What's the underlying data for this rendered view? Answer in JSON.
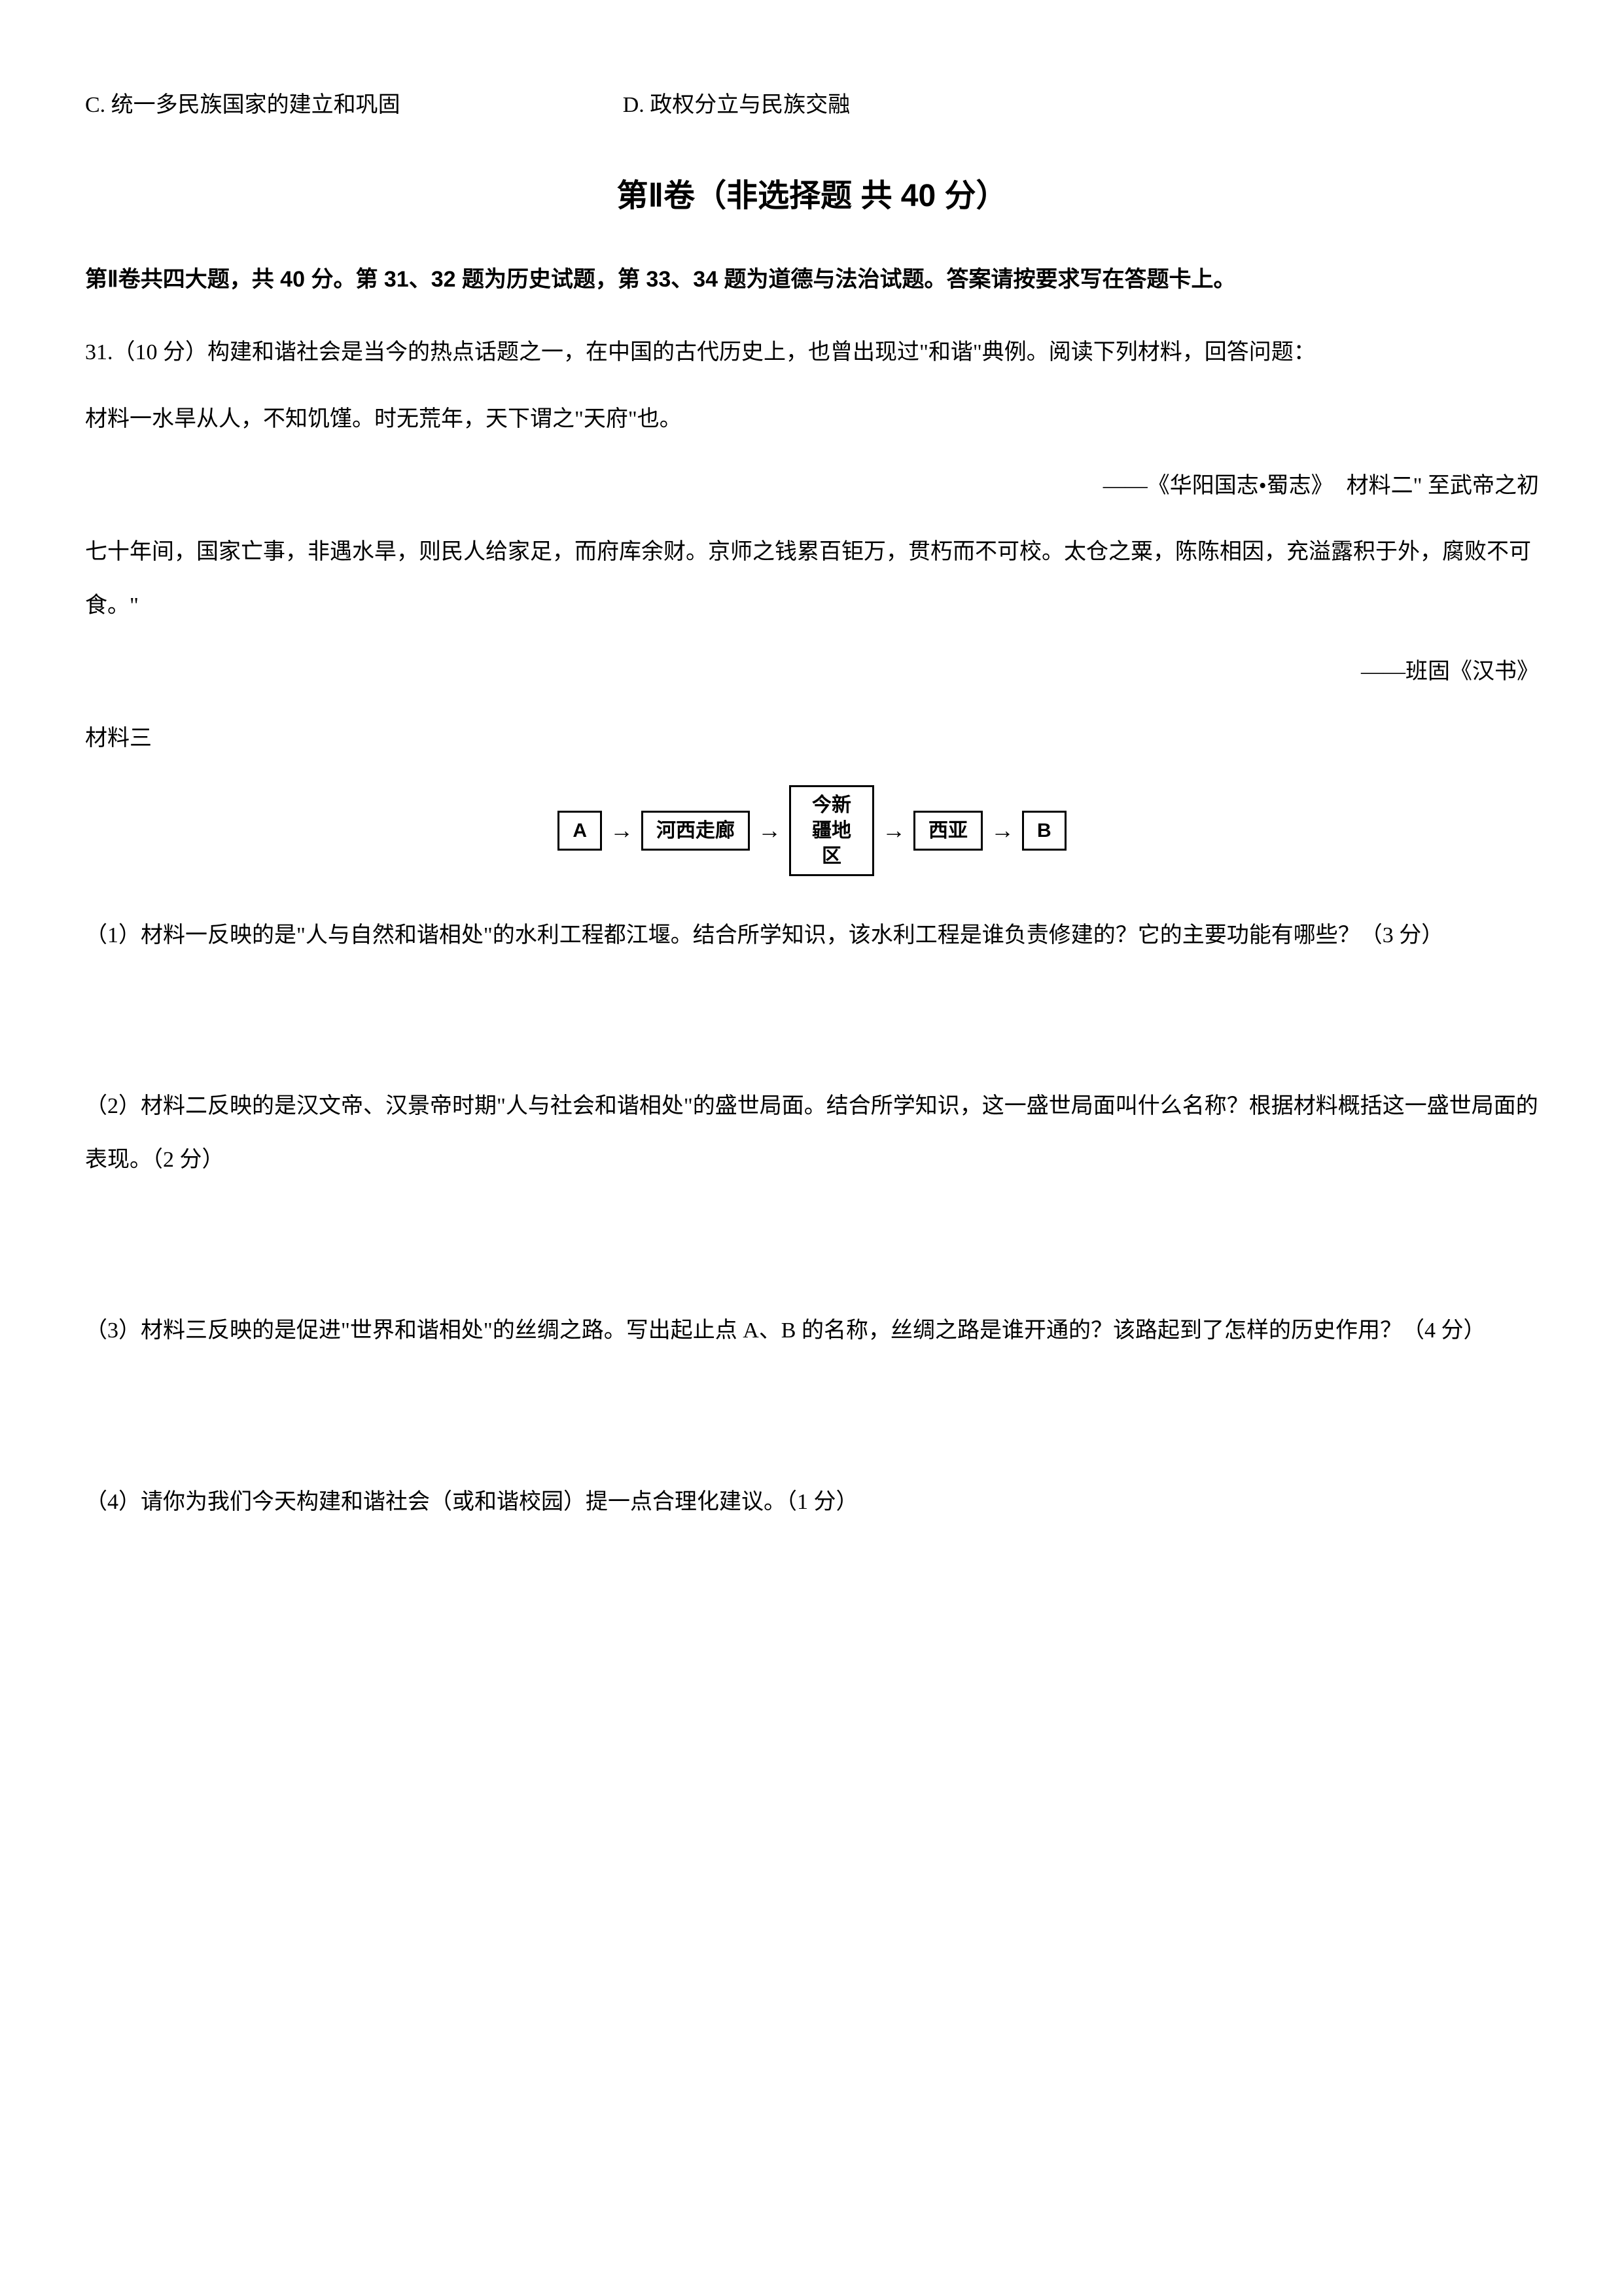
{
  "options": {
    "c": "C. 统一多民族国家的建立和巩固",
    "d": "D. 政权分立与民族交融"
  },
  "section": {
    "title": "第Ⅱ卷（非选择题  共  40 分）",
    "intro": "第Ⅱ卷共四大题，共 40 分。第 31、32 题为历史试题，第 33、34 题为道德与法治试题。答案请按要求写在答题卡上。"
  },
  "q31": {
    "prompt": "31.（10 分）构建和谐社会是当今的热点话题之一，在中国的古代历史上，也曾出现过\"和谐\"典例。阅读下列材料，回答问题：",
    "material1": "材料一水旱从人，不知饥馑。时无荒年，天下谓之\"天府\"也。",
    "attribution1": "——《华阳国志•蜀志》",
    "material2_prefix": "材料二\" 至武帝之初",
    "material2_body": "七十年间，国家亡事，非遇水旱，则民人给家足，而府库余财。京师之钱累百钜万，贯朽而不可校。太仓之粟，陈陈相因，充溢露积于外，腐败不可食。\"",
    "attribution2": "——班固《汉书》",
    "material3_label": "材料三",
    "diagram": {
      "box_a": "A",
      "box_hexi": "河西走廊",
      "box_xinjiang": "今新疆地区",
      "box_xiya": "西亚",
      "box_b": "B"
    },
    "sub1": "（1）材料一反映的是\"人与自然和谐相处\"的水利工程都江堰。结合所学知识，该水利工程是谁负责修建的？它的主要功能有哪些？（3 分）",
    "sub2": "（2）材料二反映的是汉文帝、汉景帝时期\"人与社会和谐相处\"的盛世局面。结合所学知识，这一盛世局面叫什么名称？根据材料概括这一盛世局面的表现。（2 分）",
    "sub3": "（3）材料三反映的是促进\"世界和谐相处\"的丝绸之路。写出起止点 A、B 的名称，丝绸之路是谁开通的？该路起到了怎样的历史作用？（4 分）",
    "sub4": "（4）请你为我们今天构建和谐社会（或和谐校园）提一点合理化建议。（1 分）"
  }
}
